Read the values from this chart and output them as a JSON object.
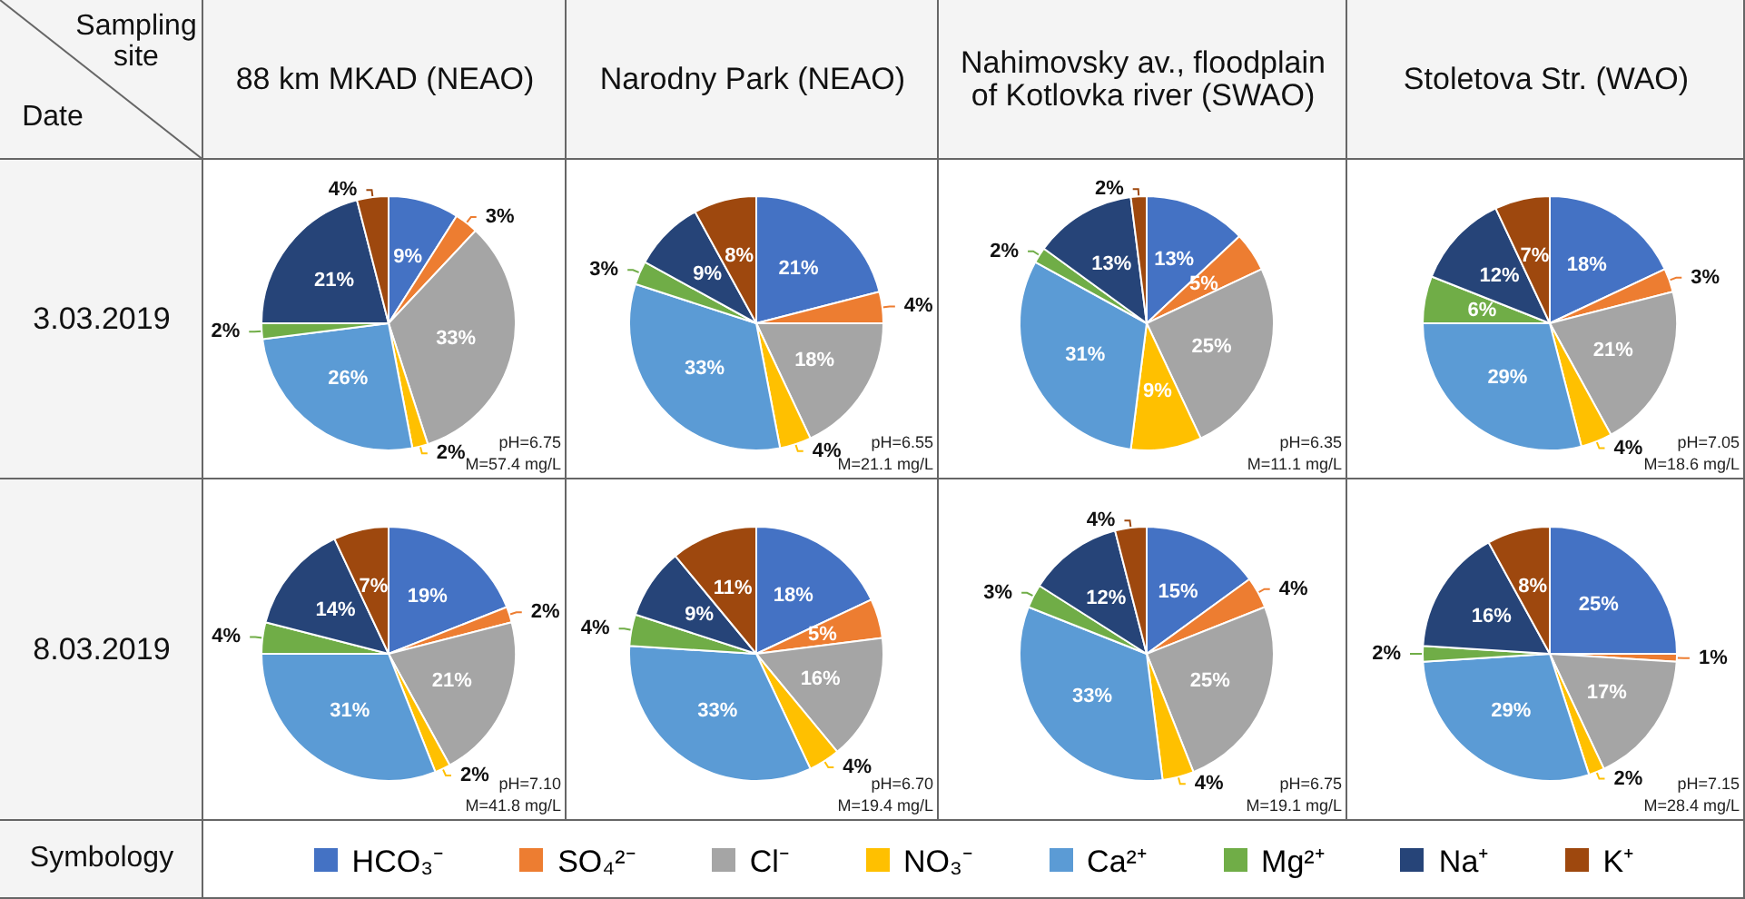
{
  "chart_data": [
    {
      "type": "other",
      "annotations": [
        "Sampling site",
        "Date",
        "88 km MKAD (NEAO)",
        "Narodny Park (NEAO)",
        "Nahimovsky av., floodplain of Kotlovka river (SWAO)",
        "Stoletova Str. (WAO)",
        "3.03.2019",
        "8.03.2019",
        "Symbology"
      ]
    },
    {
      "type": "pie",
      "categories": [
        "HCO₃⁻",
        "SO₄²⁻",
        "Cl⁻",
        "NO₃⁻",
        "Ca²⁺",
        "Mg²⁺",
        "Na⁺",
        "K⁺"
      ],
      "values": [
        9,
        3,
        33,
        2,
        26,
        2,
        21,
        4
      ],
      "value_labels": [
        "9%",
        "3%",
        "33%",
        "2%",
        "26%",
        "2%",
        "21%",
        "4%"
      ],
      "colors": [
        "#4472c4",
        "#ed7d31",
        "#a5a5a5",
        "#ffc000",
        "#5b9bd5",
        "#70ad47",
        "#264478",
        "#9e480e"
      ],
      "annotations": [
        "pH=6.75",
        "M=57.4 mg/L"
      ],
      "legend": "bottom"
    },
    {
      "type": "pie",
      "categories": [
        null,
        null,
        null,
        null,
        null,
        null,
        null,
        null
      ],
      "values": [
        21,
        4,
        18,
        4,
        33,
        3,
        9,
        8
      ],
      "value_labels": [
        "21%",
        "4%",
        "18%",
        "4%",
        "33%",
        "3%",
        "9%",
        "8%"
      ],
      "colors": [
        "#4472c4",
        "#ed7d31",
        "#a5a5a5",
        "#ffc000",
        "#5b9bd5",
        "#70ad47",
        "#264478",
        "#9e480e"
      ],
      "annotations": [
        "pH=6.55",
        "M=21.1 mg/L"
      ]
    },
    {
      "type": "pie",
      "categories": [
        null,
        null,
        null,
        null,
        null,
        null,
        null,
        null
      ],
      "values": [
        13,
        5,
        25,
        9,
        31,
        2,
        13,
        2
      ],
      "value_labels": [
        "13%",
        "5%",
        "25%",
        "9%",
        "31%",
        "2%",
        "13%",
        "2%"
      ],
      "colors": [
        "#4472c4",
        "#ed7d31",
        "#a5a5a5",
        "#ffc000",
        "#5b9bd5",
        "#70ad47",
        "#264478",
        "#9e480e"
      ],
      "annotations": [
        "pH=6.35",
        "M=11.1 mg/L"
      ]
    },
    {
      "type": "pie",
      "categories": [
        null,
        null,
        null,
        null,
        null,
        null,
        null,
        null
      ],
      "values": [
        18,
        3,
        21,
        4,
        29,
        6,
        12,
        7
      ],
      "value_labels": [
        "18%",
        "3%",
        "21%",
        "4%",
        "29%",
        "6%",
        "12%",
        "7%"
      ],
      "colors": [
        "#4472c4",
        "#ed7d31",
        "#a5a5a5",
        "#ffc000",
        "#5b9bd5",
        "#70ad47",
        "#264478",
        "#9e480e"
      ],
      "annotations": [
        "pH=7.05",
        "M=18.6 mg/L"
      ]
    },
    {
      "type": "pie",
      "categories": [
        null,
        null,
        null,
        null,
        null,
        null,
        null,
        null
      ],
      "values": [
        19,
        2,
        21,
        2,
        31,
        4,
        14,
        7
      ],
      "value_labels": [
        "19%",
        "2%",
        "21%",
        "2%",
        "31%",
        "4%",
        "14%",
        "7%"
      ],
      "colors": [
        "#4472c4",
        "#ed7d31",
        "#a5a5a5",
        "#ffc000",
        "#5b9bd5",
        "#70ad47",
        "#264478",
        "#9e480e"
      ],
      "annotations": [
        "pH=7.10",
        "M=41.8 mg/L"
      ]
    },
    {
      "type": "pie",
      "categories": [
        null,
        null,
        null,
        null,
        null,
        null,
        null,
        null
      ],
      "values": [
        18,
        5,
        16,
        4,
        33,
        4,
        9,
        11
      ],
      "value_labels": [
        "18%",
        "5%",
        "16%",
        "4%",
        "33%",
        "4%",
        "9%",
        "11%"
      ],
      "colors": [
        "#4472c4",
        "#ed7d31",
        "#a5a5a5",
        "#ffc000",
        "#5b9bd5",
        "#70ad47",
        "#264478",
        "#9e480e"
      ],
      "annotations": [
        "pH=6.70",
        "M=19.4 mg/L"
      ]
    },
    {
      "type": "pie",
      "categories": [
        null,
        null,
        null,
        null,
        null,
        null,
        null,
        null
      ],
      "values": [
        15,
        4,
        25,
        4,
        33,
        3,
        12,
        4
      ],
      "value_labels": [
        "15%",
        "4%",
        "25%",
        "4%",
        "33%",
        "3%",
        "12%",
        "4%"
      ],
      "colors": [
        "#4472c4",
        "#ed7d31",
        "#a5a5a5",
        "#ffc000",
        "#5b9bd5",
        "#70ad47",
        "#264478",
        "#9e480e"
      ],
      "annotations": [
        "pH=6.75",
        "M=19.1 mg/L"
      ]
    },
    {
      "type": "pie",
      "categories": [
        null,
        null,
        null,
        null,
        null,
        null,
        null,
        null
      ],
      "values": [
        25,
        1,
        17,
        2,
        29,
        2,
        16,
        8
      ],
      "value_labels": [
        "25%",
        "1%",
        "17%",
        "2%",
        "29%",
        "2%",
        "16%",
        "8%"
      ],
      "colors": [
        "#4472c4",
        "#ed7d31",
        "#a5a5a5",
        "#ffc000",
        "#5b9bd5",
        "#70ad47",
        "#264478",
        "#9e480e"
      ],
      "annotations": [
        "pH=7.15",
        "M=28.4 mg/L"
      ]
    }
  ]
}
